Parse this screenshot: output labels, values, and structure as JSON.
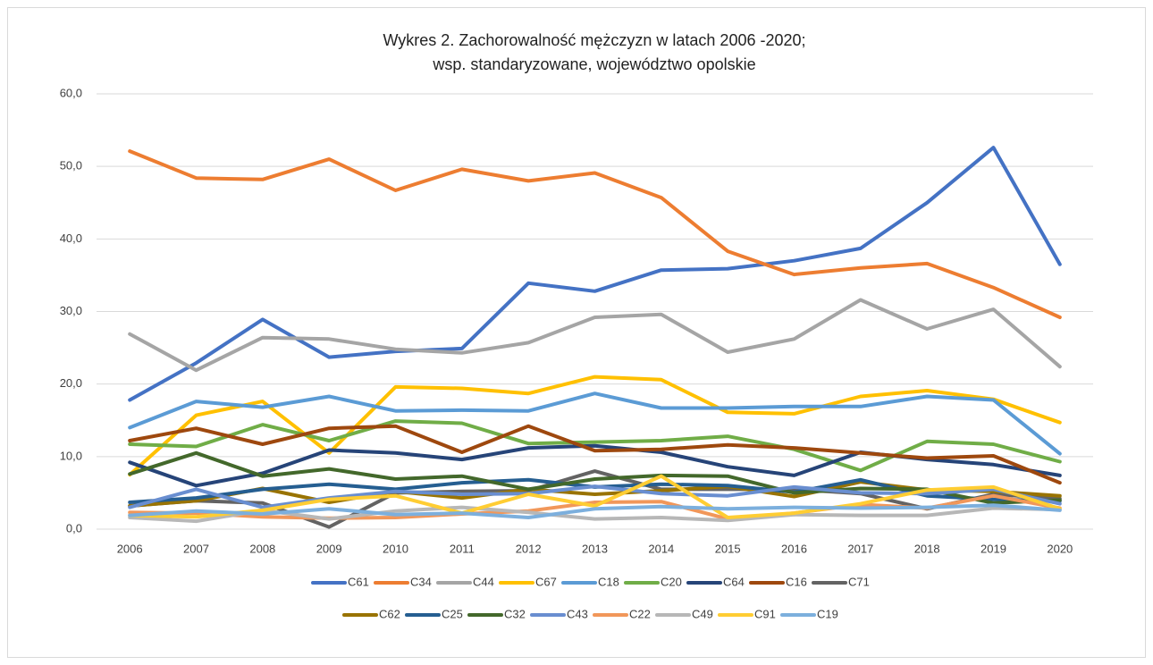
{
  "chart_data": {
    "type": "line",
    "title": "Wykres 2. Zachorowalność mężczyzn w latach 2006 -2020;",
    "subtitle": "wsp. standaryzowane, województwo opolskie",
    "categories": [
      "2006",
      "2007",
      "2008",
      "2009",
      "2010",
      "2011",
      "2012",
      "2013",
      "2014",
      "2015",
      "2016",
      "2017",
      "2018",
      "2019",
      "2020"
    ],
    "ylim": [
      0,
      60
    ],
    "yticks": [
      {
        "value": 0,
        "label": "0,0"
      },
      {
        "value": 10,
        "label": "10,0"
      },
      {
        "value": 20,
        "label": "20,0"
      },
      {
        "value": 30,
        "label": "30,0"
      },
      {
        "value": 40,
        "label": "40,0"
      },
      {
        "value": 50,
        "label": "50,0"
      },
      {
        "value": 60,
        "label": "60,0"
      }
    ],
    "grid": true,
    "legend": "bottom",
    "series": [
      {
        "name": "C61",
        "color": "#4472c4",
        "values": [
          17.8,
          22.9,
          28.9,
          23.7,
          24.5,
          24.9,
          33.9,
          32.8,
          35.7,
          35.9,
          37.0,
          38.7,
          45.0,
          52.6,
          36.5
        ]
      },
      {
        "name": "C34",
        "color": "#ed7d31",
        "values": [
          52.1,
          48.4,
          48.2,
          51.0,
          46.7,
          49.6,
          48.0,
          49.1,
          45.7,
          38.3,
          35.1,
          36.0,
          36.6,
          33.3,
          29.2
        ]
      },
      {
        "name": "C44",
        "color": "#a5a5a5",
        "values": [
          26.9,
          21.9,
          26.4,
          26.2,
          24.8,
          24.3,
          25.7,
          29.2,
          29.6,
          24.4,
          26.2,
          31.6,
          27.6,
          30.3,
          22.4
        ]
      },
      {
        "name": "C67",
        "color": "#ffc000",
        "values": [
          7.5,
          15.7,
          17.6,
          10.5,
          19.6,
          19.4,
          18.7,
          21.0,
          20.6,
          16.1,
          15.9,
          18.3,
          19.1,
          17.9,
          14.7
        ]
      },
      {
        "name": "C18",
        "color": "#5b9bd5",
        "values": [
          14.0,
          17.6,
          16.8,
          18.3,
          16.3,
          16.4,
          16.3,
          18.7,
          16.7,
          16.7,
          16.9,
          16.9,
          18.3,
          17.8,
          10.4
        ]
      },
      {
        "name": "C20",
        "color": "#70ad47",
        "values": [
          11.7,
          11.4,
          14.4,
          12.2,
          14.9,
          14.6,
          11.8,
          12.0,
          12.2,
          12.8,
          11.0,
          8.1,
          12.1,
          11.7,
          9.3
        ]
      },
      {
        "name": "C64",
        "color": "#264478",
        "values": [
          9.2,
          6.0,
          7.7,
          10.9,
          10.5,
          9.6,
          11.2,
          11.5,
          10.6,
          8.6,
          7.4,
          10.6,
          9.6,
          8.9,
          7.4
        ]
      },
      {
        "name": "C16",
        "color": "#9e480e",
        "values": [
          12.2,
          13.9,
          11.7,
          13.9,
          14.2,
          10.6,
          14.2,
          10.8,
          11.0,
          11.6,
          11.2,
          10.5,
          9.8,
          10.1,
          6.4
        ]
      },
      {
        "name": "C71",
        "color": "#636363",
        "values": [
          3.2,
          3.9,
          3.6,
          0.3,
          5.0,
          5.2,
          5.3,
          8.0,
          5.5,
          5.5,
          5.5,
          4.9,
          2.8,
          4.8,
          4.2
        ]
      },
      {
        "name": "C62",
        "color": "#997300",
        "values": [
          3.2,
          3.9,
          5.6,
          3.7,
          5.2,
          4.3,
          5.5,
          4.8,
          5.3,
          5.9,
          4.5,
          6.5,
          5.4,
          5.2,
          4.6
        ]
      },
      {
        "name": "C25",
        "color": "#255e91",
        "values": [
          3.7,
          4.3,
          5.5,
          6.2,
          5.5,
          6.4,
          6.8,
          5.8,
          6.2,
          6.0,
          5.1,
          6.8,
          4.6,
          4.1,
          3.9
        ]
      },
      {
        "name": "C32",
        "color": "#43682b",
        "values": [
          7.6,
          10.5,
          7.3,
          8.3,
          6.9,
          7.3,
          5.5,
          6.9,
          7.4,
          7.3,
          5.0,
          5.6,
          5.5,
          3.6,
          4.0
        ]
      },
      {
        "name": "C43",
        "color": "#698ed0",
        "values": [
          3.0,
          5.5,
          3.0,
          4.3,
          5.2,
          4.8,
          4.9,
          5.9,
          4.9,
          4.6,
          5.8,
          5.0,
          4.9,
          5.5,
          3.5
        ]
      },
      {
        "name": "C22",
        "color": "#f1975a",
        "values": [
          2.3,
          2.2,
          1.7,
          1.5,
          1.6,
          2.1,
          2.5,
          3.7,
          3.8,
          1.4,
          2.2,
          3.4,
          2.9,
          4.6,
          2.9
        ]
      },
      {
        "name": "C49",
        "color": "#b7b7b7",
        "values": [
          1.6,
          1.1,
          2.6,
          1.4,
          2.5,
          3.0,
          2.3,
          1.4,
          1.6,
          1.2,
          2.0,
          1.9,
          1.9,
          2.9,
          2.7
        ]
      },
      {
        "name": "C91",
        "color": "#ffcd33",
        "values": [
          1.9,
          1.7,
          2.6,
          4.1,
          4.6,
          2.2,
          4.8,
          3.2,
          7.3,
          1.6,
          2.2,
          3.5,
          5.4,
          5.8,
          2.8
        ]
      },
      {
        "name": "C19",
        "color": "#7cafdd",
        "values": [
          1.9,
          2.5,
          2.1,
          2.8,
          2.0,
          2.2,
          1.6,
          2.8,
          3.1,
          2.8,
          3.0,
          2.9,
          3.0,
          3.3,
          2.6
        ]
      }
    ]
  }
}
